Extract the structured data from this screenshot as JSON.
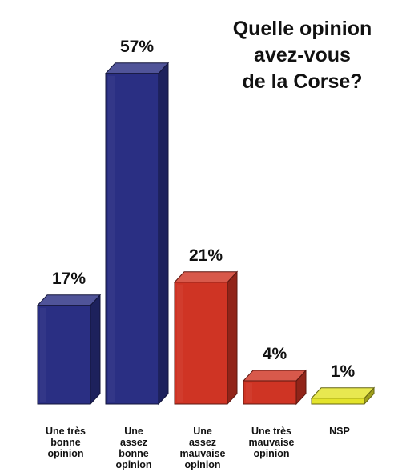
{
  "title_lines": [
    "Quelle opinion",
    "avez-vous",
    "de la Corse?"
  ],
  "chart_data": {
    "type": "bar",
    "title": "Quelle opinion avez-vous de la Corse?",
    "categories": [
      [
        "Une très",
        "bonne",
        "opinion"
      ],
      [
        "Une",
        "assez",
        "bonne",
        "opinion"
      ],
      [
        "Une",
        "assez",
        "mauvaise",
        "opinion"
      ],
      [
        "Une très",
        "mauvaise",
        "opinion"
      ],
      [
        "NSP"
      ]
    ],
    "values": [
      17,
      57,
      21,
      4,
      1
    ],
    "value_labels": [
      "17%",
      "57%",
      "21%",
      "4%",
      "1%"
    ],
    "unit": "%",
    "colors": [
      "#2a2f83",
      "#2a2f83",
      "#cf3424",
      "#cf3424",
      "#e3e32a"
    ],
    "grid": false,
    "legend": "none"
  }
}
